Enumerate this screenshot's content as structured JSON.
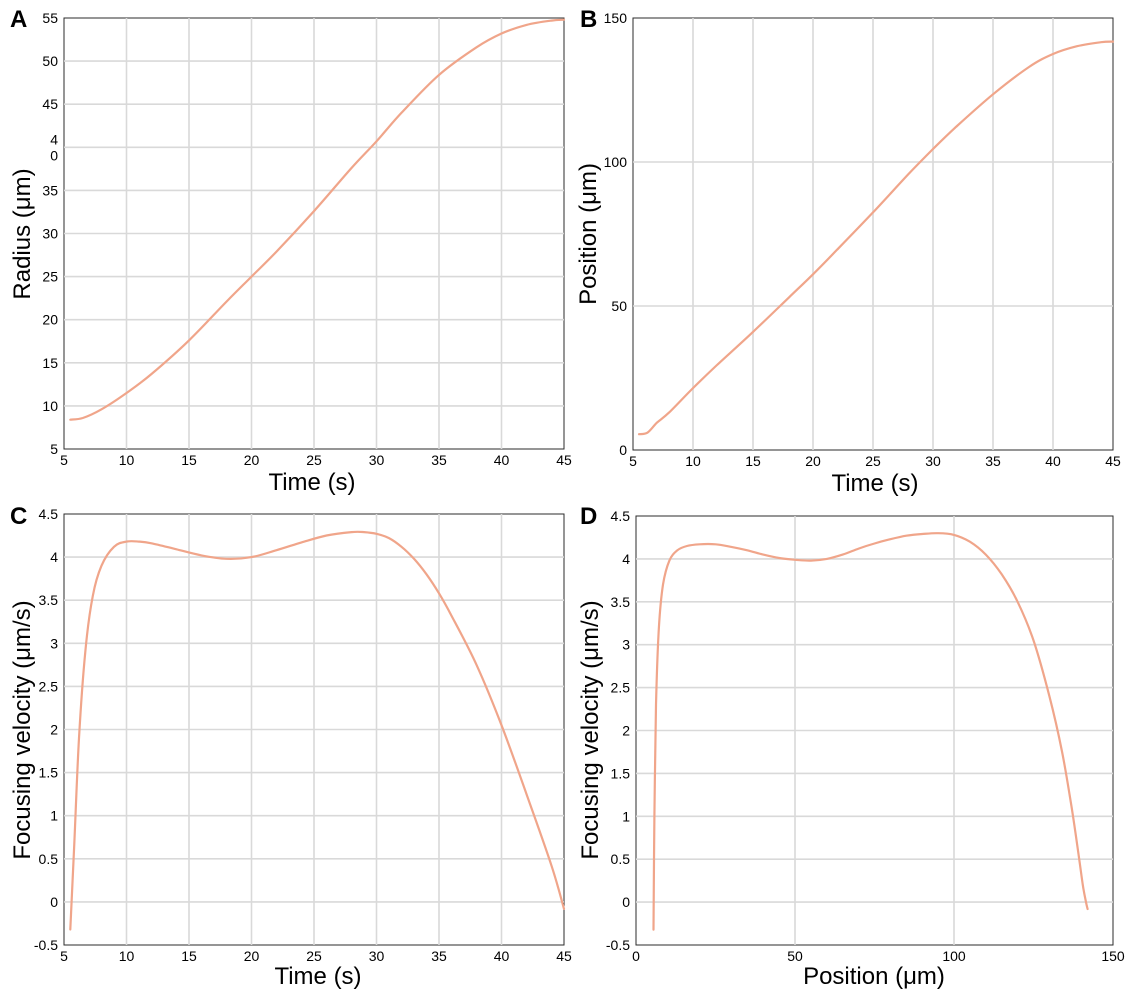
{
  "chart_data": [
    {
      "panel": "A",
      "type": "line",
      "xlabel": "Time (s)",
      "ylabel": "Radius (μm)",
      "xlim": [
        5,
        45
      ],
      "ylim": [
        5,
        55
      ],
      "xticks": [
        "5",
        "10",
        "15",
        "20",
        "25",
        "30",
        "35",
        "40",
        "45"
      ],
      "yticks": [
        "5",
        "10",
        "15",
        "20",
        "25",
        "30",
        "35",
        "4\n0",
        "45",
        "50",
        "55"
      ],
      "grid": true,
      "line_color": "#f0a58a",
      "series": [
        {
          "x": [
            5.5,
            6.5,
            8,
            10,
            12,
            15,
            18,
            20,
            22,
            25,
            28,
            30,
            32,
            35,
            38,
            40,
            42,
            44,
            45
          ],
          "y": [
            8.4,
            8.6,
            9.6,
            11.5,
            13.7,
            17.6,
            22.1,
            25.0,
            27.9,
            32.6,
            37.6,
            40.7,
            44.0,
            48.4,
            51.6,
            53.2,
            54.2,
            54.7,
            54.8
          ]
        }
      ]
    },
    {
      "panel": "B",
      "type": "line",
      "xlabel": "Time (s)",
      "ylabel": "Position (μm)",
      "xlim": [
        5,
        45
      ],
      "ylim": [
        0,
        150
      ],
      "xticks": [
        "5",
        "10",
        "15",
        "20",
        "25",
        "30",
        "35",
        "40",
        "45"
      ],
      "yticks": [
        "0",
        "50",
        "100",
        "150"
      ],
      "grid": true,
      "line_color": "#f0a58a",
      "series": [
        {
          "x": [
            5.5,
            6.2,
            7,
            8,
            10,
            12,
            15,
            18,
            20,
            22,
            25,
            28,
            30,
            32,
            35,
            38,
            40,
            42,
            44,
            45
          ],
          "y": [
            5.5,
            6.0,
            9.5,
            13.0,
            21.5,
            29.5,
            41.0,
            53.0,
            61.0,
            69.5,
            82.5,
            96.0,
            104.5,
            112.5,
            123.5,
            133.0,
            137.5,
            140.2,
            141.6,
            141.8
          ]
        }
      ]
    },
    {
      "panel": "C",
      "type": "line",
      "xlabel": "Time (s)",
      "ylabel": "Focusing velocity (μm/s)",
      "xlim": [
        5,
        45
      ],
      "ylim": [
        -0.5,
        4.5
      ],
      "xticks": [
        "5",
        "10",
        "15",
        "20",
        "25",
        "30",
        "35",
        "40",
        "45"
      ],
      "yticks": [
        "-0.5",
        "0",
        "0.5",
        "1",
        "1.5",
        "2",
        "2.5",
        "3",
        "3.5",
        "4",
        "4.5"
      ],
      "grid": true,
      "line_color": "#f0a58a",
      "series": [
        {
          "x": [
            5.5,
            5.8,
            6.2,
            6.7,
            7.3,
            8,
            9,
            10,
            11,
            12,
            14,
            16,
            18,
            20,
            22,
            24,
            26,
            28,
            29,
            30,
            31,
            32,
            33,
            34,
            35,
            36,
            38,
            40,
            42,
            44,
            45
          ],
          "y": [
            -0.32,
            0.6,
            1.9,
            2.9,
            3.55,
            3.9,
            4.12,
            4.18,
            4.18,
            4.16,
            4.09,
            4.02,
            3.98,
            4.0,
            4.08,
            4.17,
            4.25,
            4.29,
            4.29,
            4.27,
            4.22,
            4.12,
            3.98,
            3.8,
            3.58,
            3.32,
            2.75,
            2.05,
            1.25,
            0.42,
            -0.08
          ]
        }
      ]
    },
    {
      "panel": "D",
      "type": "line",
      "xlabel": "Position (μm)",
      "ylabel": "Focusing velocity (μm/s)",
      "xlim": [
        0,
        150
      ],
      "ylim": [
        -0.5,
        4.5
      ],
      "xticks": [
        "0",
        "50",
        "100",
        "150"
      ],
      "yticks": [
        "-0.5",
        "0",
        "0.5",
        "1",
        "1.5",
        "2",
        "2.5",
        "3",
        "3.5",
        "4",
        "4.5"
      ],
      "grid": true,
      "line_color": "#f0a58a",
      "series": [
        {
          "x": [
            5.5,
            5.8,
            6.3,
            7.2,
            8.5,
            10.5,
            13,
            16,
            20,
            25,
            30,
            35,
            40,
            45,
            50,
            55,
            60,
            65,
            70,
            75,
            80,
            85,
            90,
            95,
            100,
            105,
            110,
            115,
            120,
            125,
            130,
            134,
            137,
            139,
            140.5,
            141.5,
            142
          ],
          "y": [
            -0.32,
            1.0,
            2.3,
            3.2,
            3.7,
            3.98,
            4.1,
            4.15,
            4.17,
            4.17,
            4.14,
            4.1,
            4.05,
            4.01,
            3.99,
            3.98,
            4.0,
            4.05,
            4.12,
            4.18,
            4.23,
            4.27,
            4.29,
            4.3,
            4.28,
            4.2,
            4.05,
            3.82,
            3.5,
            3.05,
            2.4,
            1.75,
            1.1,
            0.6,
            0.2,
            0.0,
            -0.08
          ]
        }
      ]
    }
  ]
}
